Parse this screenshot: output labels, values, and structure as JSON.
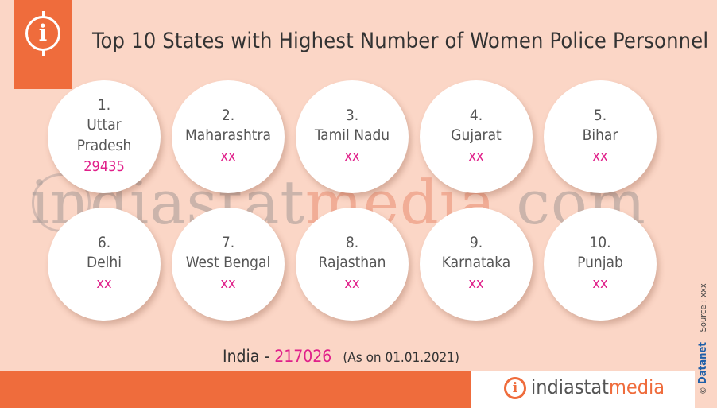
{
  "title": "Top 10 States with Highest Number of Women Police Personnel",
  "watermark": {
    "left": "indiastat",
    "mid": "media",
    "right": ".com"
  },
  "states": [
    {
      "rank": "1.",
      "name": "Uttar Pradesh",
      "value": "29435"
    },
    {
      "rank": "2.",
      "name": "Maharashtra",
      "value": "xx"
    },
    {
      "rank": "3.",
      "name": "Tamil Nadu",
      "value": "xx"
    },
    {
      "rank": "4.",
      "name": "Gujarat",
      "value": "xx"
    },
    {
      "rank": "5.",
      "name": "Bihar",
      "value": "xx"
    },
    {
      "rank": "6.",
      "name": "Delhi",
      "value": "xx"
    },
    {
      "rank": "7.",
      "name": "West Bengal",
      "value": "xx"
    },
    {
      "rank": "8.",
      "name": "Rajasthan",
      "value": "xx"
    },
    {
      "rank": "9.",
      "name": "Karnataka",
      "value": "xx"
    },
    {
      "rank": "10.",
      "name": "Punjab",
      "value": "xx"
    }
  ],
  "total": {
    "label": "India",
    "separator": "-",
    "value": "217026",
    "date": "(As on 01.01.2021)"
  },
  "footer": {
    "brand_a": "indiastat",
    "brand_b": "media"
  },
  "side": {
    "copyright": "©",
    "brand": "Datanet",
    "source": "Source : xxx"
  },
  "colors": {
    "background": "#fbd6c6",
    "accent": "#ef6c3c",
    "value": "#e0208a"
  },
  "icons": {
    "header": "info-icon",
    "footer": "info-icon"
  }
}
